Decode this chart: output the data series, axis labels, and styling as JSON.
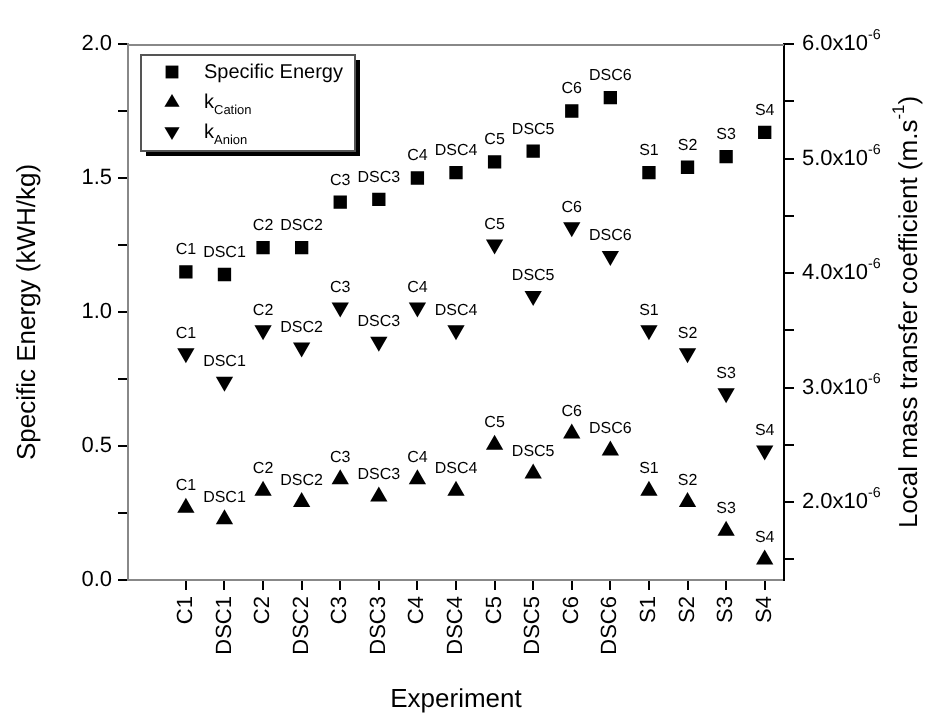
{
  "chart_data": {
    "type": "scatter",
    "xlabel": "Experiment",
    "ylabel": "Specific Energy (kWH/kg)",
    "y2label": "Local mass transfer coefficient (m.s$^{-1}$)",
    "categories": [
      "C1",
      "DSC1",
      "C2",
      "DSC2",
      "C3",
      "DSC3",
      "C4",
      "DSC4",
      "C5",
      "DSC5",
      "C6",
      "DSC6",
      "S1",
      "S2",
      "S3",
      "S4"
    ],
    "series": [
      {
        "name": "Specific Energy",
        "color": "#000000",
        "marker": "square",
        "values": [
          1.15,
          1.14,
          1.24,
          1.24,
          1.41,
          1.42,
          1.5,
          1.52,
          1.56,
          1.6,
          1.75,
          1.8,
          1.52,
          1.54,
          1.58,
          1.67
        ]
      },
      {
        "name": "k$_{Cation}$",
        "color": "#000000",
        "marker": "triangle",
        "axis": "y2",
        "values": [
          1.95e-06,
          1.85e-06,
          2.1e-06,
          2e-06,
          2.2e-06,
          2.05e-06,
          2.2e-06,
          2.1e-06,
          2.5e-06,
          2.25e-06,
          2.6e-06,
          2.45e-06,
          2.1e-06,
          2e-06,
          1.75e-06,
          1.5e-06
        ]
      },
      {
        "name": "k$_{Anion}$",
        "color": "#000000",
        "marker": "triangle-down",
        "axis": "y2",
        "values": [
          3.3e-06,
          3.05e-06,
          3.5e-06,
          3.35e-06,
          3.7e-06,
          3.4e-06,
          3.7e-06,
          3.5e-06,
          4.25e-06,
          3.8e-06,
          4.4e-06,
          4.15e-06,
          3.5e-06,
          3.3e-06,
          2.95e-06,
          2.45e-06
        ]
      }
    ],
    "ylim": [
      0,
      2
    ],
    "yticks": [
      {
        "value": 0,
        "label": "0.0"
      },
      {
        "value": 0.25,
        "label": null
      },
      {
        "value": 0.5,
        "label": "0.5"
      },
      {
        "value": 0.75,
        "label": null
      },
      {
        "value": 1,
        "label": "1.0"
      },
      {
        "value": 1.25,
        "label": null
      },
      {
        "value": 1.5,
        "label": "1.5"
      },
      {
        "value": 1.75,
        "label": null
      },
      {
        "value": 2,
        "label": "2.0"
      }
    ],
    "y2lim": [
      1.32e-06,
      6e-06
    ],
    "y2ticks": [
      {
        "value": 1.5e-06,
        "label": null
      },
      {
        "value": 2e-06,
        "label": "2.0x10$^{-6}$"
      },
      {
        "value": 2.5e-06,
        "label": null
      },
      {
        "value": 3e-06,
        "label": "3.0x10$^{-6}$"
      },
      {
        "value": 3.5e-06,
        "label": null
      },
      {
        "value": 4e-06,
        "label": "4.0x10$^{-6}$"
      },
      {
        "value": 4.5e-06,
        "label": null
      },
      {
        "value": 5e-06,
        "label": "5.0x10$^{-6}$"
      },
      {
        "value": 5.5e-06,
        "label": null
      },
      {
        "value": 6e-06,
        "label": "6.0x10$^{-6}$"
      }
    ],
    "grid": false,
    "legend": "top left"
  }
}
